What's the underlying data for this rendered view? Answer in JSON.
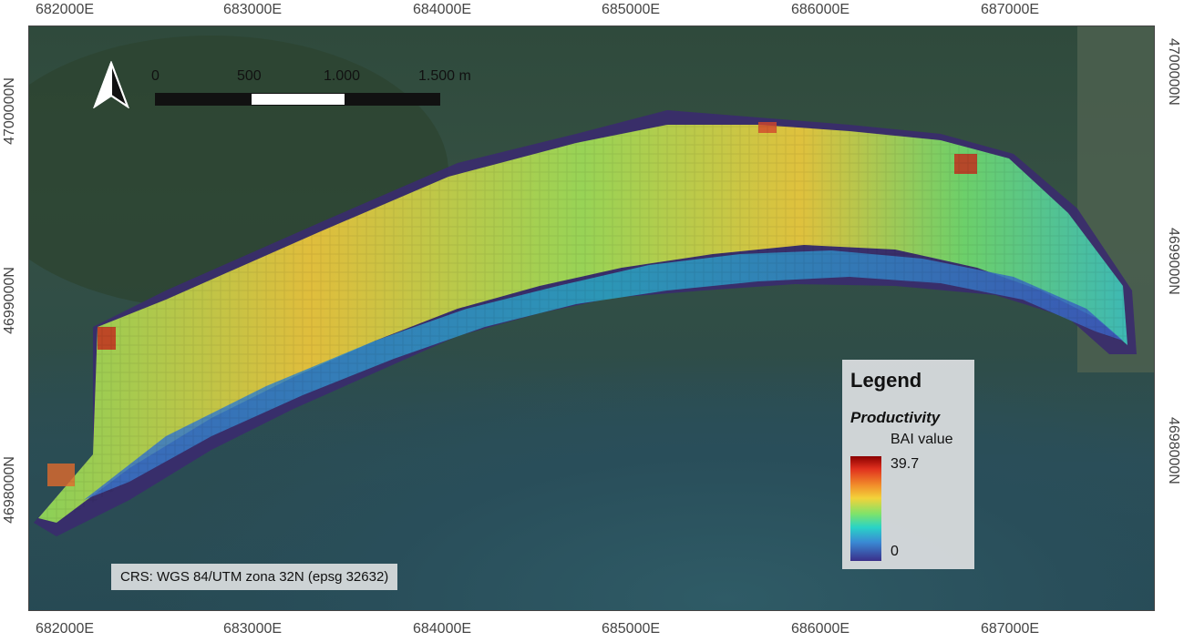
{
  "grid_labels": {
    "easting": [
      "682000E",
      "683000E",
      "684000E",
      "685000E",
      "686000E",
      "687000E"
    ],
    "northing": [
      "4700000N",
      "4699000N",
      "4698000N"
    ]
  },
  "scale_bar": {
    "labels": [
      "0",
      "500",
      "1.000",
      "1.500 m"
    ]
  },
  "legend": {
    "title": "Legend",
    "layer": "Productivity",
    "unit": "BAI value",
    "max": "39.7",
    "min": "0"
  },
  "crs_text": "CRS: WGS 84/UTM zona 32N (epsg 32632)",
  "colors": {
    "high": "#b0150f",
    "mid_high": "#f3a531",
    "mid": "#8fd957",
    "mid_low": "#2fc6c0",
    "low": "#3b4bb0",
    "zero": "#3a2b6e"
  },
  "icons": {
    "north_arrow": "north-arrow-icon"
  }
}
